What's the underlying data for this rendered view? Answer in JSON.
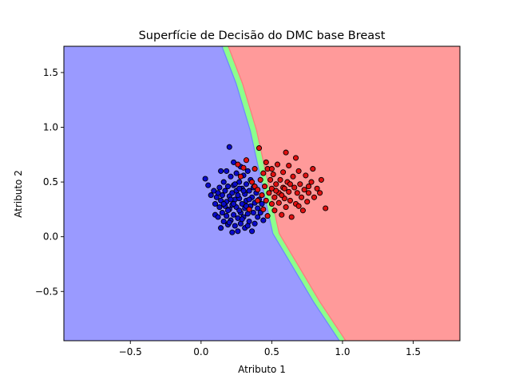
{
  "chart_data": {
    "type": "scatter",
    "title": "Superfície de Decisão do DMC base Breast",
    "xlabel": "Atributo 1",
    "ylabel": "Atributo 2",
    "xlim": [
      -0.97,
      1.83
    ],
    "ylim": [
      -0.95,
      1.74
    ],
    "x_ticks": [
      -0.5,
      0.0,
      0.5,
      1.0,
      1.5
    ],
    "x_tick_labels": [
      "−0.5",
      "0.0",
      "0.5",
      "1.0",
      "1.5"
    ],
    "y_ticks": [
      -0.5,
      0.0,
      0.5,
      1.0,
      1.5
    ],
    "y_tick_labels": [
      "−0.5",
      "0.0",
      "0.5",
      "1.0",
      "1.5"
    ],
    "grid": false,
    "colors": {
      "region_class_0": "#9a9aff",
      "region_class_1": "#ff9a9a",
      "boundary_band": "#8cff8c",
      "points_class_0": "#0a0acc",
      "points_class_1": "#e01010",
      "point_edge": "#000000"
    },
    "decision_boundary": {
      "description_points": [
        [
          0.17,
          1.74
        ],
        [
          0.27,
          1.4
        ],
        [
          0.37,
          0.97
        ],
        [
          0.53,
          0.03
        ],
        [
          0.82,
          -0.6
        ],
        [
          1.0,
          -0.95
        ]
      ]
    },
    "series": [
      {
        "class": 0,
        "points": [
          [
            0.03,
            0.53
          ],
          [
            0.05,
            0.47
          ],
          [
            0.07,
            0.38
          ],
          [
            0.09,
            0.42
          ],
          [
            0.1,
            0.3
          ],
          [
            0.1,
            0.2
          ],
          [
            0.12,
            0.18
          ],
          [
            0.11,
            0.36
          ],
          [
            0.13,
            0.45
          ],
          [
            0.13,
            0.27
          ],
          [
            0.14,
            0.6
          ],
          [
            0.14,
            0.33
          ],
          [
            0.14,
            0.08
          ],
          [
            0.15,
            0.22
          ],
          [
            0.15,
            0.38
          ],
          [
            0.16,
            0.5
          ],
          [
            0.16,
            0.14
          ],
          [
            0.17,
            0.28
          ],
          [
            0.17,
            0.42
          ],
          [
            0.18,
            0.6
          ],
          [
            0.18,
            0.32
          ],
          [
            0.18,
            0.19
          ],
          [
            0.19,
            0.46
          ],
          [
            0.19,
            0.11
          ],
          [
            0.2,
            0.82
          ],
          [
            0.2,
            0.37
          ],
          [
            0.2,
            0.25
          ],
          [
            0.21,
            0.55
          ],
          [
            0.21,
            0.15
          ],
          [
            0.22,
            0.4
          ],
          [
            0.22,
            0.29
          ],
          [
            0.22,
            0.04
          ],
          [
            0.23,
            0.68
          ],
          [
            0.23,
            0.47
          ],
          [
            0.23,
            0.2
          ],
          [
            0.24,
            0.34
          ],
          [
            0.24,
            0.1
          ],
          [
            0.25,
            0.58
          ],
          [
            0.25,
            0.27
          ],
          [
            0.25,
            0.42
          ],
          [
            0.26,
            0.17
          ],
          [
            0.26,
            0.05
          ],
          [
            0.27,
            0.5
          ],
          [
            0.27,
            0.35
          ],
          [
            0.28,
            0.22
          ],
          [
            0.28,
            0.64
          ],
          [
            0.28,
            0.12
          ],
          [
            0.29,
            0.44
          ],
          [
            0.29,
            0.3
          ],
          [
            0.3,
            0.56
          ],
          [
            0.3,
            0.18
          ],
          [
            0.31,
            0.39
          ],
          [
            0.31,
            0.26
          ],
          [
            0.31,
            0.08
          ],
          [
            0.32,
            0.48
          ],
          [
            0.32,
            0.33
          ],
          [
            0.33,
            0.21
          ],
          [
            0.33,
            0.6
          ],
          [
            0.34,
            0.42
          ],
          [
            0.34,
            0.14
          ],
          [
            0.35,
            0.28
          ],
          [
            0.35,
            0.52
          ],
          [
            0.36,
            0.36
          ],
          [
            0.36,
            0.05
          ],
          [
            0.37,
            0.22
          ],
          [
            0.37,
            0.45
          ],
          [
            0.38,
            0.31
          ],
          [
            0.38,
            0.12
          ],
          [
            0.39,
            0.4
          ],
          [
            0.4,
            0.26
          ],
          [
            0.4,
            0.18
          ],
          [
            0.41,
            0.34
          ],
          [
            0.42,
            0.22
          ],
          [
            0.43,
            0.3
          ],
          [
            0.44,
            0.15
          ],
          [
            0.12,
            0.4
          ],
          [
            0.16,
            0.3
          ],
          [
            0.19,
            0.24
          ],
          [
            0.21,
            0.34
          ],
          [
            0.24,
            0.48
          ],
          [
            0.26,
            0.38
          ],
          [
            0.27,
            0.24
          ],
          [
            0.29,
            0.16
          ],
          [
            0.3,
            0.42
          ],
          [
            0.32,
            0.28
          ],
          [
            0.34,
            0.34
          ],
          [
            0.2,
            0.13
          ],
          [
            0.23,
            0.3
          ],
          [
            0.27,
            0.44
          ],
          [
            0.33,
            0.1
          ]
        ]
      },
      {
        "class": 1,
        "points": [
          [
            0.26,
            0.66
          ],
          [
            0.28,
            0.55
          ],
          [
            0.3,
            0.63
          ],
          [
            0.32,
            0.7
          ],
          [
            0.34,
            0.25
          ],
          [
            0.36,
            0.5
          ],
          [
            0.38,
            0.46
          ],
          [
            0.38,
            0.62
          ],
          [
            0.4,
            0.43
          ],
          [
            0.4,
            0.33
          ],
          [
            0.41,
            0.81
          ],
          [
            0.42,
            0.52
          ],
          [
            0.43,
            0.38
          ],
          [
            0.44,
            0.58
          ],
          [
            0.44,
            0.25
          ],
          [
            0.45,
            0.46
          ],
          [
            0.46,
            0.33
          ],
          [
            0.47,
            0.62
          ],
          [
            0.47,
            0.19
          ],
          [
            0.48,
            0.4
          ],
          [
            0.49,
            0.52
          ],
          [
            0.5,
            0.3
          ],
          [
            0.5,
            0.44
          ],
          [
            0.51,
            0.57
          ],
          [
            0.52,
            0.24
          ],
          [
            0.52,
            0.36
          ],
          [
            0.53,
            0.48
          ],
          [
            0.54,
            0.66
          ],
          [
            0.55,
            0.31
          ],
          [
            0.55,
            0.4
          ],
          [
            0.56,
            0.52
          ],
          [
            0.57,
            0.2
          ],
          [
            0.58,
            0.45
          ],
          [
            0.58,
            0.59
          ],
          [
            0.59,
            0.35
          ],
          [
            0.6,
            0.77
          ],
          [
            0.6,
            0.27
          ],
          [
            0.61,
            0.5
          ],
          [
            0.62,
            0.41
          ],
          [
            0.62,
            0.65
          ],
          [
            0.63,
            0.33
          ],
          [
            0.64,
            0.18
          ],
          [
            0.65,
            0.55
          ],
          [
            0.66,
            0.45
          ],
          [
            0.67,
            0.72
          ],
          [
            0.67,
            0.3
          ],
          [
            0.68,
            0.4
          ],
          [
            0.69,
            0.6
          ],
          [
            0.7,
            0.48
          ],
          [
            0.71,
            0.36
          ],
          [
            0.72,
            0.24
          ],
          [
            0.73,
            0.43
          ],
          [
            0.74,
            0.56
          ],
          [
            0.75,
            0.32
          ],
          [
            0.76,
            0.4
          ],
          [
            0.78,
            0.5
          ],
          [
            0.79,
            0.62
          ],
          [
            0.8,
            0.36
          ],
          [
            0.82,
            0.44
          ],
          [
            0.85,
            0.52
          ],
          [
            0.88,
            0.26
          ],
          [
            0.46,
            0.68
          ],
          [
            0.53,
            0.42
          ],
          [
            0.57,
            0.38
          ],
          [
            0.63,
            0.48
          ],
          [
            0.69,
            0.28
          ],
          [
            0.76,
            0.46
          ],
          [
            0.84,
            0.4
          ],
          [
            0.5,
            0.62
          ],
          [
            0.59,
            0.44
          ]
        ]
      }
    ]
  }
}
